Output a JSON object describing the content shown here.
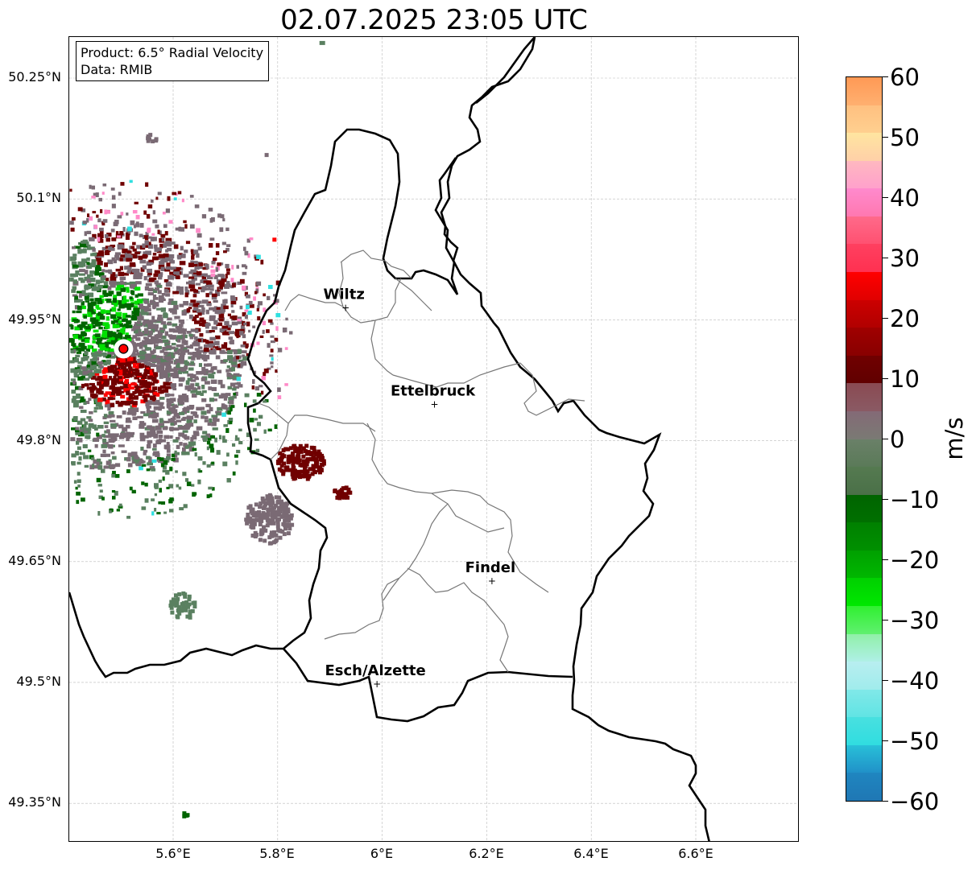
{
  "title": "02.07.2025 23:05 UTC",
  "info": {
    "product": "Product: 6.5° Radial Velocity",
    "data": "Data: RMIB"
  },
  "lat_ticks": [
    "50.25°N",
    "50.1°N",
    "49.95°N",
    "49.8°N",
    "49.65°N",
    "49.5°N",
    "49.35°N"
  ],
  "lon_ticks": [
    "5.6°E",
    "5.8°E",
    "6°E",
    "6.2°E",
    "6.4°E",
    "6.6°E"
  ],
  "cities": [
    {
      "name": "Wiltz",
      "lon": 5.93,
      "lat": 49.966
    },
    {
      "name": "Ettelbruck",
      "lon": 6.1,
      "lat": 49.846
    },
    {
      "name": "Findel",
      "lon": 6.21,
      "lat": 49.627
    },
    {
      "name": "Esch/Alzette",
      "lon": 5.99,
      "lat": 49.499
    }
  ],
  "radar_site": {
    "lon": 5.505,
    "lat": 49.914
  },
  "colorbar": {
    "unit": "m/s",
    "ticks": [
      "60",
      "50",
      "40",
      "30",
      "20",
      "10",
      "0",
      "−10",
      "−20",
      "−30",
      "−40",
      "−50",
      "−60"
    ],
    "colors": {
      "neg_far": "#1f77b4",
      "cyan": "#2fdfe0",
      "light_cyan": "#b2eef0",
      "light_green": "#8ff0a0",
      "bright_green": "#00e000",
      "dark_green": "#006400",
      "grey_green": "#5a8060",
      "grey_mauve": "#7a6a74",
      "dark_red": "#700000",
      "red": "#ff0000",
      "pink": "#ff8ac8",
      "light_yellow": "#fff0a0",
      "orange": "#ff9955"
    }
  }
}
